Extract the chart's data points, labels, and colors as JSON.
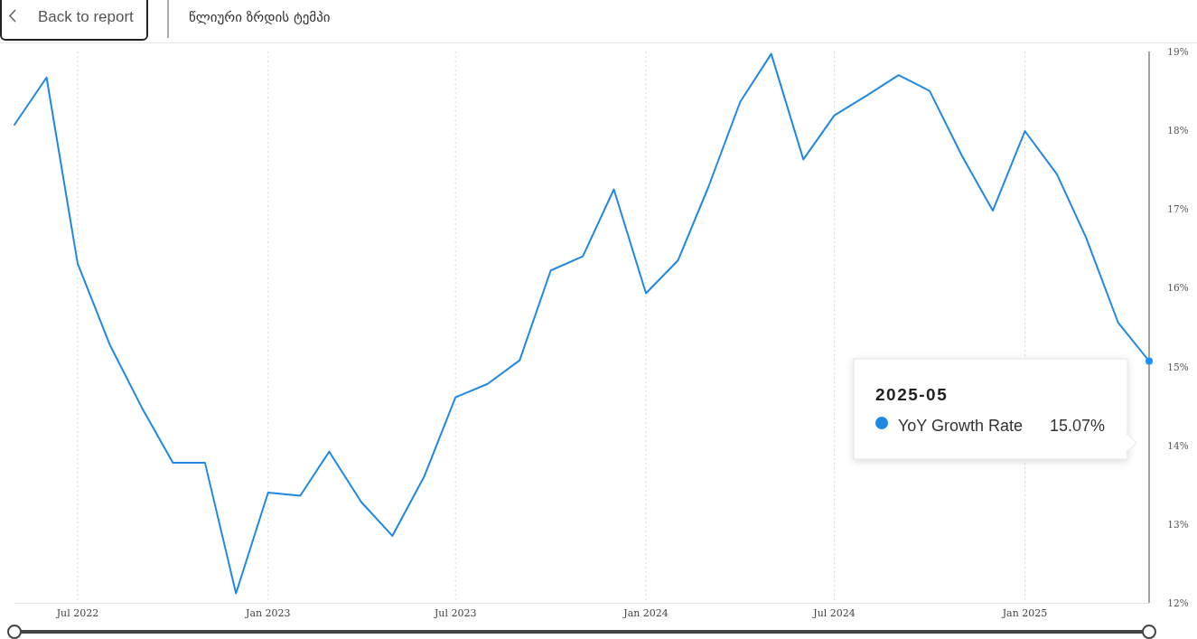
{
  "chart_data": {
    "type": "line",
    "title": "წლიური ზრდის ტემპი",
    "annotations": [
      "Back to report",
      "2025-05",
      "15.07%"
    ],
    "x": [
      "2022-05",
      "2022-06",
      "2022-07",
      "2022-08",
      "2022-09",
      "2022-10",
      "2022-11",
      "2022-12",
      "2023-01",
      "2023-02",
      "2023-03",
      "2023-04",
      "2023-05",
      "2023-06",
      "2023-07",
      "2023-08",
      "2023-09",
      "2023-10",
      "2023-11",
      "2023-12",
      "2024-01",
      "2024-02",
      "2024-03",
      "2024-04",
      "2024-05",
      "2024-06",
      "2024-07",
      "2024-08",
      "2024-09",
      "2024-10",
      "2024-11",
      "2024-12",
      "2025-01",
      "2025-02",
      "2025-03",
      "2025-04",
      "2025-05"
    ],
    "series": [
      {
        "name": "YoY Growth Rate",
        "color": "#1f88e5",
        "values": [
          18.07,
          18.67,
          16.31,
          15.28,
          14.48,
          13.78,
          13.78,
          12.12,
          13.4,
          13.36,
          13.92,
          13.28,
          12.85,
          13.61,
          14.61,
          14.78,
          15.08,
          16.22,
          16.4,
          17.25,
          15.93,
          16.35,
          17.27,
          18.36,
          18.97,
          17.63,
          18.19,
          18.44,
          18.7,
          18.5,
          17.68,
          16.98,
          17.99,
          17.44,
          16.64,
          15.56,
          15.07
        ]
      },
      {
        "type": "scatter",
        "x": [
          "2025-05"
        ],
        "color": "#1890ff",
        "values": [
          15.07
        ]
      }
    ],
    "xlim": [
      "2022-05",
      "2025-05"
    ],
    "xticks": [
      {
        "value": "2022-07",
        "label": "Jul 2022"
      },
      {
        "value": "2023-01",
        "label": "Jan 2023"
      },
      {
        "value": "2023-07",
        "label": "Jul 2023"
      },
      {
        "value": "2024-01",
        "label": "Jan 2024"
      },
      {
        "value": "2024-07",
        "label": "Jul 2024"
      },
      {
        "value": "2025-01",
        "label": "Jan 2025"
      }
    ],
    "ylim": [
      12,
      19
    ],
    "yticks": [
      {
        "value": 12,
        "label": "12%"
      },
      {
        "value": 13,
        "label": "13%"
      },
      {
        "value": 14,
        "label": "14%"
      },
      {
        "value": 15,
        "label": "15%"
      },
      {
        "value": 16,
        "label": "16%"
      },
      {
        "value": 17,
        "label": "17%"
      },
      {
        "value": 18,
        "label": "18%"
      },
      {
        "value": 19,
        "label": "19%"
      }
    ],
    "grid": "x",
    "legend": "right"
  }
}
